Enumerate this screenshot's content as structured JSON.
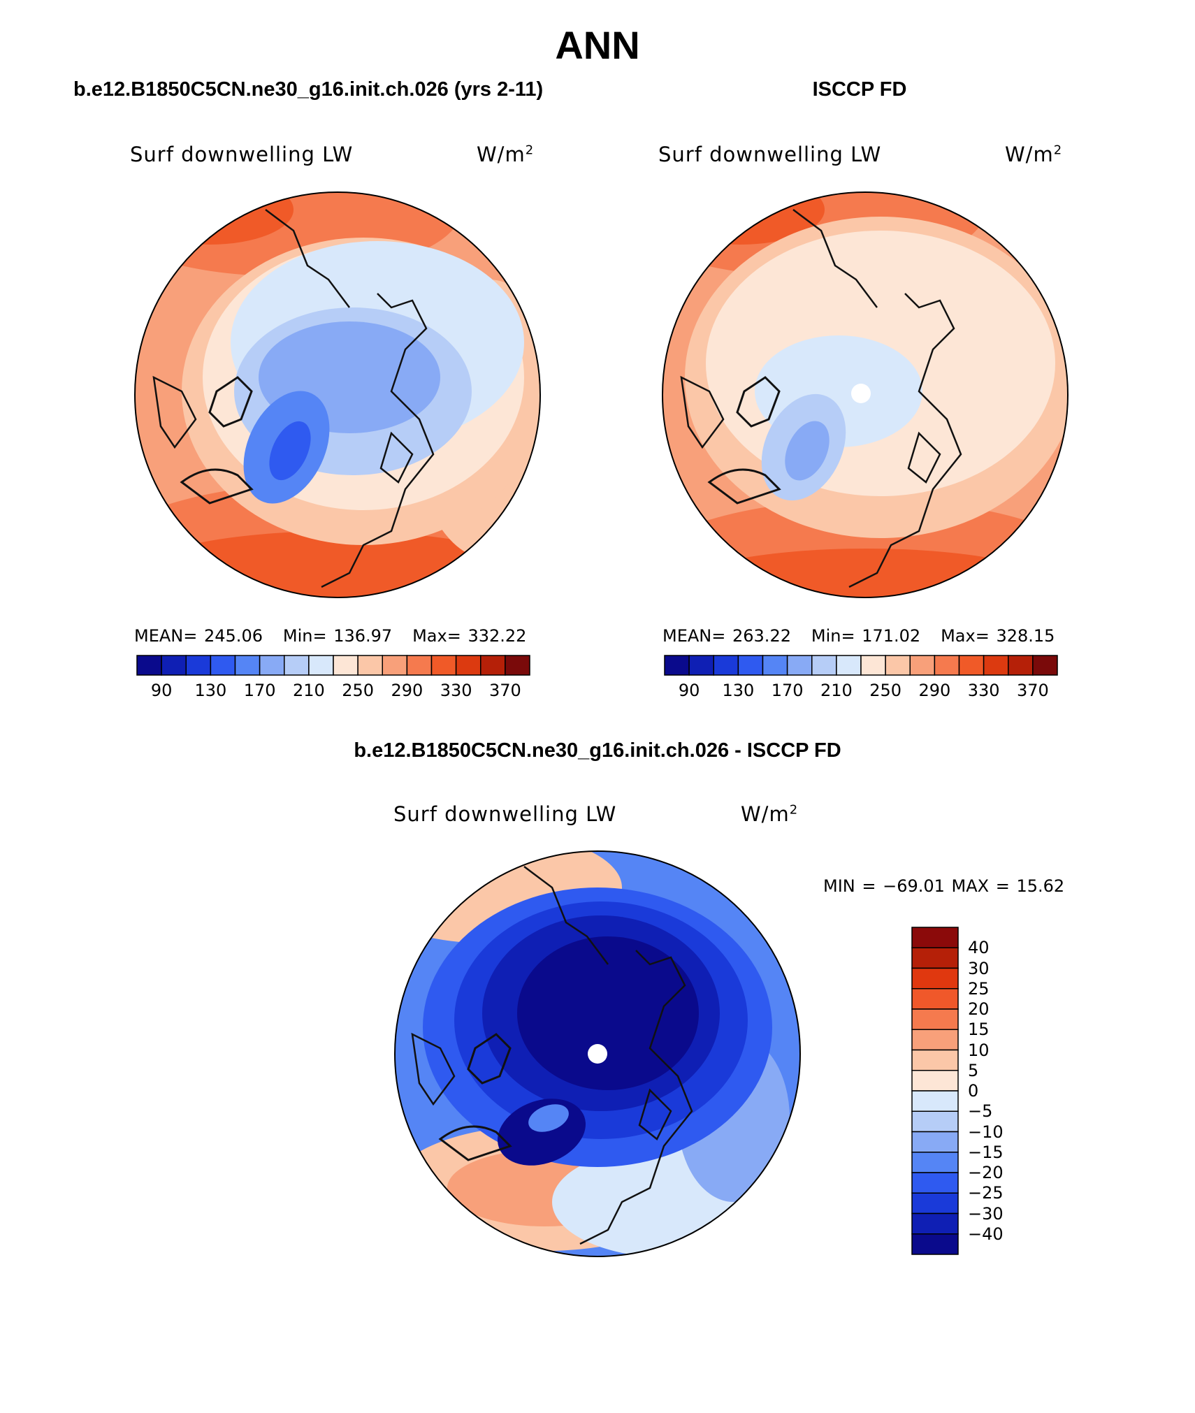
{
  "figure": {
    "title": "ANN",
    "diff_title": "b.e12.B1850C5CN.ne30_g16.init.ch.026 - ISCCP FD",
    "units_base": "W/m",
    "units_exp": "2"
  },
  "panels": [
    {
      "header": "b.e12.B1850C5CN.ne30_g16.init.ch.026 (yrs 2-11)",
      "variable": "Surf downwelling LW",
      "mean_label": "MEAN=",
      "mean": "245.06",
      "min_label": "Min=",
      "min": "136.97",
      "max_label": "Max=",
      "max": "332.22"
    },
    {
      "header": "ISCCP FD",
      "variable": "Surf downwelling LW",
      "mean_label": "MEAN=",
      "mean": "263.22",
      "min_label": "Min=",
      "min": "171.02",
      "max_label": "Max=",
      "max": "328.15"
    }
  ],
  "diff_panel": {
    "variable": "Surf downwelling LW",
    "minmax": "MIN = −69.01 MAX =   15.62"
  },
  "colorbars": {
    "absolute": {
      "colors": [
        "#0a0a8c",
        "#0f1fb4",
        "#1a3ad9",
        "#2f5af0",
        "#5585f5",
        "#88aaf5",
        "#b6cdf7",
        "#d8e8fb",
        "#fde6d6",
        "#fbc7a8",
        "#f8a07a",
        "#f57a4e",
        "#f05a28",
        "#dc3a10",
        "#b52008",
        "#7a0a0a"
      ],
      "ticks": [
        "90",
        "130",
        "170",
        "210",
        "250",
        "290",
        "330",
        "370"
      ]
    },
    "difference": {
      "colors": [
        "#8b0a0a",
        "#b52008",
        "#e0380f",
        "#f0582a",
        "#f57a4e",
        "#f8a07a",
        "#fbc7a8",
        "#fde6d6",
        "#d8e8fb",
        "#b6cdf7",
        "#88aaf5",
        "#5585f5",
        "#2f5af0",
        "#1a3ad9",
        "#0f1fb4",
        "#0a0a8c"
      ],
      "ticks": [
        "40",
        "30",
        "25",
        "20",
        "15",
        "10",
        "5",
        "0",
        "−5",
        "−10",
        "−15",
        "−20",
        "−25",
        "−30",
        "−40"
      ]
    }
  }
}
